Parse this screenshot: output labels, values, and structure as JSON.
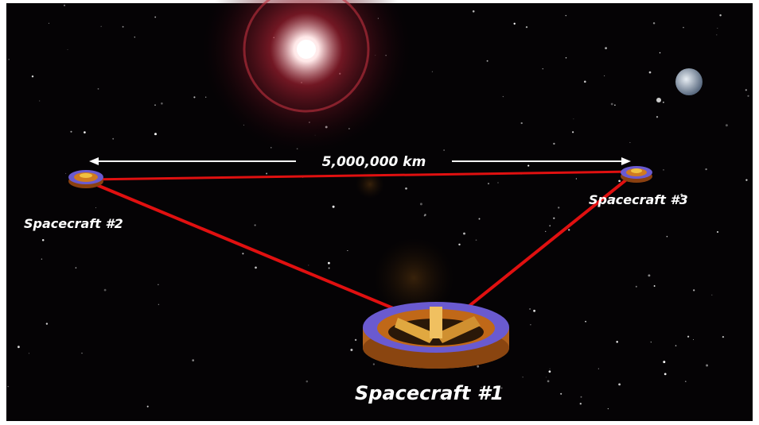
{
  "distance_label": "5,000,000 km",
  "spacecraft": [
    {
      "label": "Spacecraft #1"
    },
    {
      "label": "Spacecraft #2"
    },
    {
      "label": "Spacecraft #3"
    }
  ]
}
